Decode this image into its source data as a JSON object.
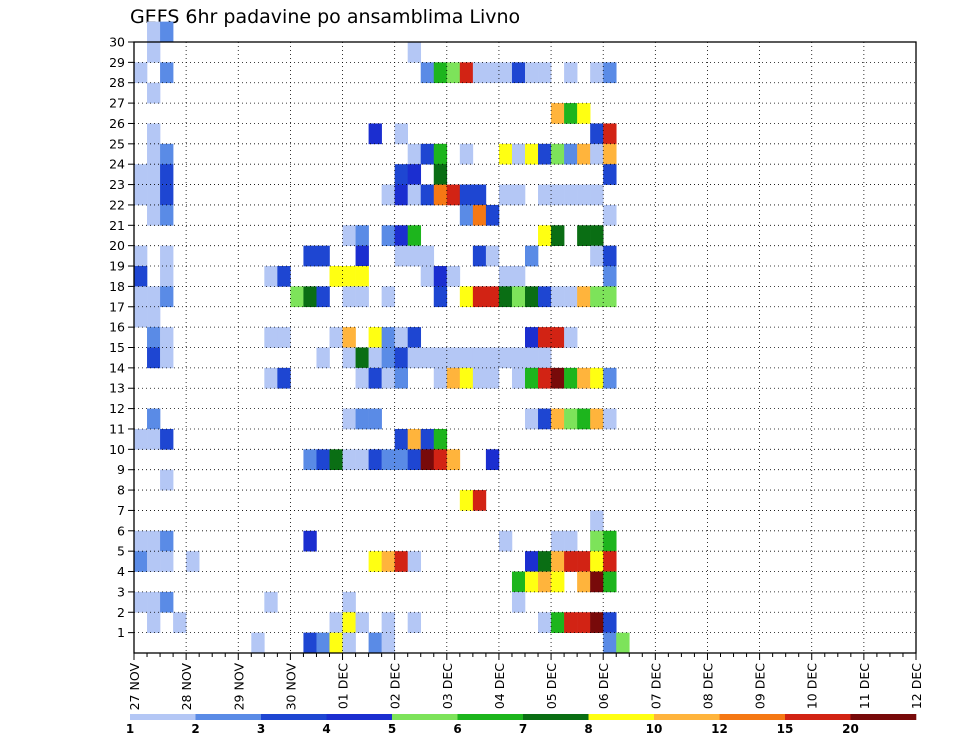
{
  "chart_data": {
    "type": "heatmap",
    "title": "GEFS 6hr padavine po ansamblima Livno",
    "xlabel": "",
    "ylabel": "",
    "x_tick_labels": [
      "27 NOV",
      "28 NOV",
      "29 NOV",
      "30 NOV",
      "01 DEC",
      "02 DEC",
      "03 DEC",
      "04 DEC",
      "05 DEC",
      "06 DEC",
      "07 DEC",
      "08 DEC",
      "09 DEC",
      "10 DEC",
      "11 DEC",
      "12 DEC"
    ],
    "y_tick_labels": [
      "1",
      "2",
      "3",
      "4",
      "5",
      "6",
      "7",
      "8",
      "9",
      "10",
      "11",
      "12",
      "13",
      "14",
      "15",
      "16",
      "17",
      "18",
      "19",
      "20",
      "21",
      "22",
      "23",
      "24",
      "25",
      "26",
      "27",
      "28",
      "29",
      "30"
    ],
    "x_steps_per_day": 4,
    "y_range": [
      0,
      30
    ],
    "grid": true,
    "colorbar": {
      "labels": [
        "1",
        "2",
        "3",
        "4",
        "5",
        "6",
        "7",
        "8",
        "10",
        "12",
        "15",
        "20"
      ],
      "colors": [
        "#b4c7f5",
        "#5a8be6",
        "#1e46d2",
        "#1b2ed0",
        "#7de35a",
        "#1db51d",
        "#0a6e14",
        "#ffff12",
        "#ffb43c",
        "#f57814",
        "#d22314",
        "#780a0a"
      ],
      "bins": [
        [
          1,
          2
        ],
        [
          2,
          3
        ],
        [
          3,
          4
        ],
        [
          4,
          5
        ],
        [
          5,
          6
        ],
        [
          6,
          7
        ],
        [
          7,
          8
        ],
        [
          8,
          10
        ],
        [
          10,
          12
        ],
        [
          12,
          15
        ],
        [
          15,
          20
        ],
        [
          20,
          999
        ]
      ]
    },
    "cells": [
      [
        1,
        30,
        1
      ],
      [
        2,
        30,
        2
      ],
      [
        1,
        29,
        1
      ],
      [
        21,
        29,
        1
      ],
      [
        0,
        28,
        1
      ],
      [
        2,
        28,
        2
      ],
      [
        22,
        28,
        2
      ],
      [
        23,
        28,
        6
      ],
      [
        24,
        28,
        5
      ],
      [
        25,
        28,
        11
      ],
      [
        26,
        28,
        1
      ],
      [
        27,
        28,
        1
      ],
      [
        28,
        28,
        1
      ],
      [
        29,
        28,
        3
      ],
      [
        30,
        28,
        1
      ],
      [
        31,
        28,
        1
      ],
      [
        33,
        28,
        1
      ],
      [
        35,
        28,
        1
      ],
      [
        36,
        28,
        2
      ],
      [
        1,
        27,
        1
      ],
      [
        32,
        26,
        9
      ],
      [
        33,
        26,
        6
      ],
      [
        34,
        26,
        8
      ],
      [
        18,
        25,
        4
      ],
      [
        20,
        25,
        1
      ],
      [
        1,
        25,
        1
      ],
      [
        35,
        25,
        3
      ],
      [
        36,
        25,
        11
      ],
      [
        1,
        24,
        1
      ],
      [
        2,
        24,
        2
      ],
      [
        21,
        24,
        1
      ],
      [
        22,
        24,
        3
      ],
      [
        23,
        24,
        6
      ],
      [
        25,
        24,
        1
      ],
      [
        28,
        24,
        8
      ],
      [
        29,
        24,
        1
      ],
      [
        30,
        24,
        8
      ],
      [
        31,
        24,
        3
      ],
      [
        32,
        24,
        5
      ],
      [
        33,
        24,
        2
      ],
      [
        34,
        24,
        9
      ],
      [
        35,
        24,
        1
      ],
      [
        36,
        24,
        9
      ],
      [
        0,
        23,
        1
      ],
      [
        1,
        23,
        1
      ],
      [
        2,
        23,
        3
      ],
      [
        20,
        23,
        3
      ],
      [
        21,
        23,
        4
      ],
      [
        23,
        23,
        7
      ],
      [
        36,
        23,
        3
      ],
      [
        0,
        22,
        1
      ],
      [
        1,
        22,
        1
      ],
      [
        2,
        22,
        3
      ],
      [
        19,
        22,
        1
      ],
      [
        20,
        22,
        4
      ],
      [
        21,
        22,
        1
      ],
      [
        22,
        22,
        3
      ],
      [
        23,
        22,
        10
      ],
      [
        24,
        22,
        11
      ],
      [
        25,
        22,
        3
      ],
      [
        26,
        22,
        3
      ],
      [
        28,
        22,
        1
      ],
      [
        29,
        22,
        1
      ],
      [
        31,
        22,
        1
      ],
      [
        32,
        22,
        1
      ],
      [
        33,
        22,
        1
      ],
      [
        34,
        22,
        1
      ],
      [
        35,
        22,
        1
      ],
      [
        1,
        21,
        1
      ],
      [
        2,
        21,
        2
      ],
      [
        25,
        21,
        2
      ],
      [
        26,
        21,
        10
      ],
      [
        27,
        21,
        3
      ],
      [
        36,
        21,
        1
      ],
      [
        16,
        20,
        1
      ],
      [
        17,
        20,
        2
      ],
      [
        19,
        20,
        2
      ],
      [
        20,
        20,
        4
      ],
      [
        21,
        20,
        6
      ],
      [
        31,
        20,
        8
      ],
      [
        32,
        20,
        7
      ],
      [
        34,
        20,
        7
      ],
      [
        35,
        20,
        7
      ],
      [
        0,
        19,
        1
      ],
      [
        2,
        19,
        1
      ],
      [
        13,
        19,
        3
      ],
      [
        14,
        19,
        3
      ],
      [
        17,
        19,
        4
      ],
      [
        20,
        19,
        1
      ],
      [
        21,
        19,
        1
      ],
      [
        22,
        19,
        1
      ],
      [
        26,
        19,
        3
      ],
      [
        27,
        19,
        1
      ],
      [
        30,
        19,
        2
      ],
      [
        35,
        19,
        1
      ],
      [
        36,
        19,
        3
      ],
      [
        0,
        18,
        3
      ],
      [
        2,
        18,
        1
      ],
      [
        10,
        18,
        1
      ],
      [
        11,
        18,
        3
      ],
      [
        15,
        18,
        8
      ],
      [
        16,
        18,
        8
      ],
      [
        17,
        18,
        8
      ],
      [
        22,
        18,
        1
      ],
      [
        23,
        18,
        4
      ],
      [
        24,
        18,
        1
      ],
      [
        28,
        18,
        1
      ],
      [
        29,
        18,
        1
      ],
      [
        36,
        18,
        2
      ],
      [
        0,
        17,
        1
      ],
      [
        1,
        17,
        1
      ],
      [
        2,
        17,
        2
      ],
      [
        12,
        17,
        5
      ],
      [
        13,
        17,
        7
      ],
      [
        14,
        17,
        3
      ],
      [
        16,
        17,
        1
      ],
      [
        17,
        17,
        1
      ],
      [
        19,
        17,
        1
      ],
      [
        23,
        17,
        3
      ],
      [
        25,
        17,
        8
      ],
      [
        26,
        17,
        11
      ],
      [
        27,
        17,
        11
      ],
      [
        28,
        17,
        7
      ],
      [
        29,
        17,
        5
      ],
      [
        30,
        17,
        7
      ],
      [
        31,
        17,
        3
      ],
      [
        32,
        17,
        1
      ],
      [
        33,
        17,
        1
      ],
      [
        34,
        17,
        9
      ],
      [
        35,
        17,
        5
      ],
      [
        36,
        17,
        5
      ],
      [
        0,
        16,
        1
      ],
      [
        1,
        16,
        1
      ],
      [
        1,
        15,
        2
      ],
      [
        2,
        15,
        1
      ],
      [
        10,
        15,
        1
      ],
      [
        11,
        15,
        1
      ],
      [
        15,
        15,
        1
      ],
      [
        16,
        15,
        9
      ],
      [
        18,
        15,
        8
      ],
      [
        19,
        15,
        2
      ],
      [
        20,
        15,
        1
      ],
      [
        21,
        15,
        3
      ],
      [
        30,
        15,
        4
      ],
      [
        31,
        15,
        11
      ],
      [
        32,
        15,
        11
      ],
      [
        33,
        15,
        1
      ],
      [
        1,
        14,
        3
      ],
      [
        2,
        14,
        1
      ],
      [
        14,
        14,
        1
      ],
      [
        16,
        14,
        1
      ],
      [
        17,
        14,
        7
      ],
      [
        18,
        14,
        1
      ],
      [
        19,
        14,
        2
      ],
      [
        20,
        14,
        3
      ],
      [
        21,
        14,
        1
      ],
      [
        22,
        14,
        1
      ],
      [
        23,
        14,
        1
      ],
      [
        24,
        14,
        1
      ],
      [
        25,
        14,
        1
      ],
      [
        26,
        14,
        1
      ],
      [
        27,
        14,
        1
      ],
      [
        28,
        14,
        1
      ],
      [
        29,
        14,
        1
      ],
      [
        30,
        14,
        1
      ],
      [
        31,
        14,
        1
      ],
      [
        10,
        13,
        1
      ],
      [
        11,
        13,
        3
      ],
      [
        17,
        13,
        1
      ],
      [
        18,
        13,
        3
      ],
      [
        19,
        13,
        1
      ],
      [
        20,
        13,
        2
      ],
      [
        23,
        13,
        1
      ],
      [
        24,
        13,
        9
      ],
      [
        25,
        13,
        8
      ],
      [
        26,
        13,
        1
      ],
      [
        27,
        13,
        1
      ],
      [
        29,
        13,
        1
      ],
      [
        30,
        13,
        6
      ],
      [
        31,
        13,
        11
      ],
      [
        32,
        13,
        12
      ],
      [
        33,
        13,
        6
      ],
      [
        34,
        13,
        9
      ],
      [
        35,
        13,
        8
      ],
      [
        36,
        13,
        2
      ],
      [
        1,
        11,
        2
      ],
      [
        16,
        11,
        1
      ],
      [
        17,
        11,
        2
      ],
      [
        18,
        11,
        2
      ],
      [
        30,
        11,
        1
      ],
      [
        31,
        11,
        3
      ],
      [
        32,
        11,
        9
      ],
      [
        33,
        11,
        5
      ],
      [
        34,
        11,
        6
      ],
      [
        35,
        11,
        9
      ],
      [
        36,
        11,
        1
      ],
      [
        0,
        10,
        1
      ],
      [
        1,
        10,
        1
      ],
      [
        2,
        10,
        3
      ],
      [
        20,
        10,
        3
      ],
      [
        21,
        10,
        9
      ],
      [
        22,
        10,
        3
      ],
      [
        23,
        10,
        6
      ],
      [
        13,
        9,
        2
      ],
      [
        14,
        9,
        3
      ],
      [
        15,
        9,
        7
      ],
      [
        16,
        9,
        1
      ],
      [
        17,
        9,
        1
      ],
      [
        18,
        9,
        3
      ],
      [
        19,
        9,
        2
      ],
      [
        20,
        9,
        2
      ],
      [
        21,
        9,
        3
      ],
      [
        22,
        9,
        12
      ],
      [
        23,
        9,
        11
      ],
      [
        24,
        9,
        9
      ],
      [
        27,
        9,
        4
      ],
      [
        2,
        8,
        1
      ],
      [
        25,
        7,
        8
      ],
      [
        26,
        7,
        11
      ],
      [
        35,
        6,
        1
      ],
      [
        0,
        5,
        1
      ],
      [
        1,
        5,
        1
      ],
      [
        2,
        5,
        2
      ],
      [
        13,
        5,
        4
      ],
      [
        28,
        5,
        1
      ],
      [
        32,
        5,
        1
      ],
      [
        33,
        5,
        1
      ],
      [
        35,
        5,
        5
      ],
      [
        36,
        5,
        6
      ],
      [
        0,
        4,
        2
      ],
      [
        1,
        4,
        1
      ],
      [
        2,
        4,
        1
      ],
      [
        4,
        4,
        1
      ],
      [
        18,
        4,
        8
      ],
      [
        19,
        4,
        9
      ],
      [
        20,
        4,
        11
      ],
      [
        21,
        4,
        1
      ],
      [
        30,
        4,
        4
      ],
      [
        31,
        4,
        7
      ],
      [
        32,
        4,
        9
      ],
      [
        33,
        4,
        11
      ],
      [
        34,
        4,
        11
      ],
      [
        35,
        4,
        8
      ],
      [
        36,
        4,
        11
      ],
      [
        29,
        3,
        6
      ],
      [
        30,
        3,
        8
      ],
      [
        31,
        3,
        9
      ],
      [
        32,
        3,
        8
      ],
      [
        34,
        3,
        9
      ],
      [
        35,
        3,
        12
      ],
      [
        36,
        3,
        6
      ],
      [
        0,
        2,
        1
      ],
      [
        1,
        2,
        1
      ],
      [
        2,
        2,
        2
      ],
      [
        10,
        2,
        1
      ],
      [
        16,
        2,
        1
      ],
      [
        29,
        2,
        1
      ],
      [
        1,
        1,
        1
      ],
      [
        3,
        1,
        1
      ],
      [
        15,
        1,
        1
      ],
      [
        16,
        1,
        8
      ],
      [
        17,
        1,
        1
      ],
      [
        19,
        1,
        1
      ],
      [
        21,
        1,
        1
      ],
      [
        31,
        1,
        1
      ],
      [
        32,
        1,
        6
      ],
      [
        33,
        1,
        11
      ],
      [
        34,
        1,
        11
      ],
      [
        35,
        1,
        12
      ],
      [
        36,
        1,
        3
      ],
      [
        9,
        0,
        1
      ],
      [
        13,
        0,
        3
      ],
      [
        14,
        0,
        2
      ],
      [
        15,
        0,
        8
      ],
      [
        16,
        0,
        1
      ],
      [
        18,
        0,
        2
      ],
      [
        19,
        0,
        1
      ],
      [
        36,
        0,
        2
      ],
      [
        37,
        0,
        5
      ]
    ]
  }
}
